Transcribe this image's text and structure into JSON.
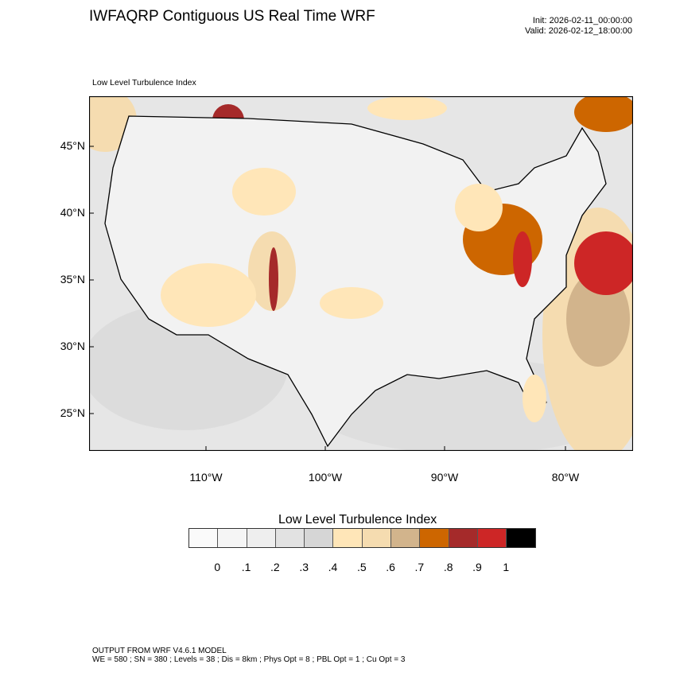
{
  "header": {
    "title": "IWFAQRP Contiguous US Real Time WRF",
    "init": "Init: 2026-02-11_00:00:00",
    "valid": "Valid: 2026-02-12_18:00:00"
  },
  "map": {
    "subtitle": "Low Level Turbulence Index",
    "lat_labels": [
      "45°N",
      "40°N",
      "35°N",
      "30°N",
      "25°N"
    ],
    "lon_labels": [
      "110°W",
      "100°W",
      "90°W",
      "80°W"
    ]
  },
  "colorbar": {
    "title": "Low Level Turbulence Index",
    "colors": [
      "#fafafa",
      "#f5f5f5",
      "#eeeeee",
      "#e2e2e2",
      "#d6d6d6",
      "#ffe6b8",
      "#f5dcb0",
      "#d2b48c",
      "#cd6600",
      "#a52a2a",
      "#cd2626",
      "#000000"
    ],
    "labels": [
      "0",
      ".1",
      ".2",
      ".3",
      ".4",
      ".5",
      ".6",
      ".7",
      ".8",
      ".9",
      "1"
    ]
  },
  "footer": {
    "line1": "OUTPUT FROM WRF V4.6.1 MODEL",
    "line2": "WE = 580 ; SN = 380 ; Levels = 38 ; Dis = 8km ; Phys Opt = 8 ; PBL Opt = 1 ; Cu Opt = 3"
  }
}
